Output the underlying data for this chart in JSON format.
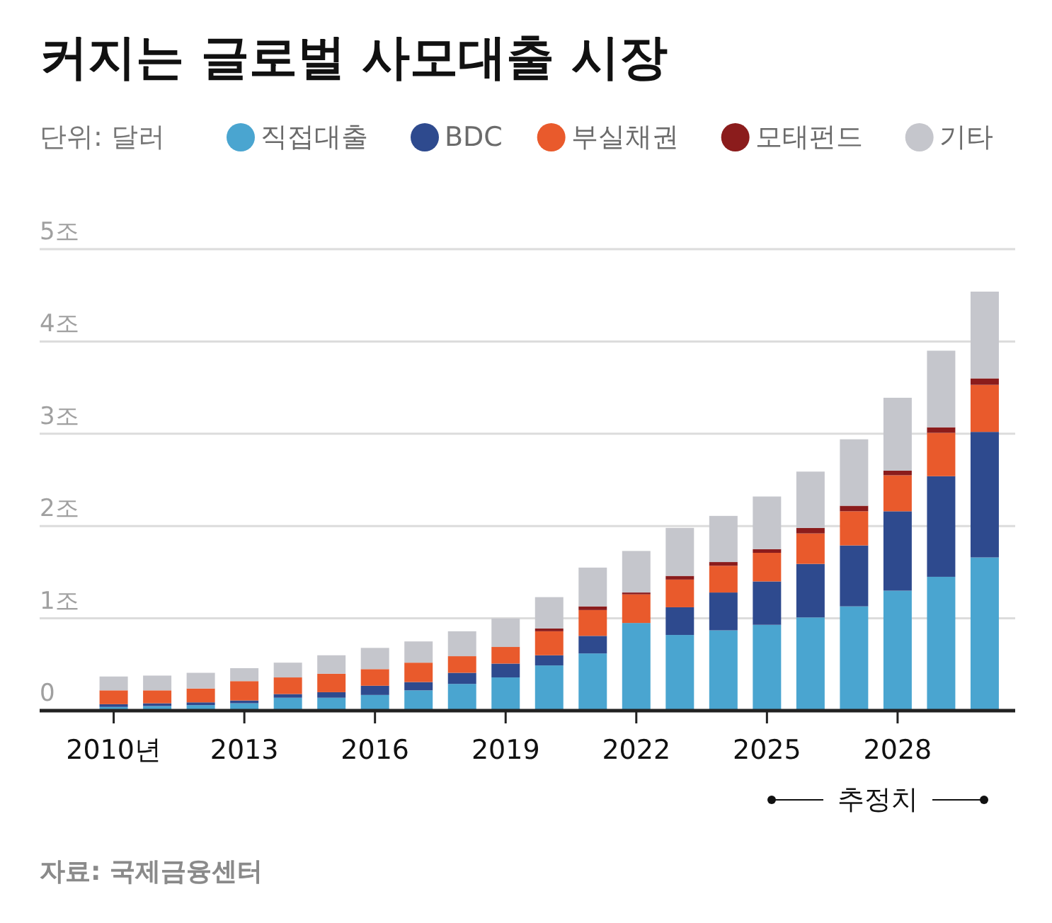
{
  "chart_data": {
    "type": "bar",
    "title": "커지는 글로벌 사모대출 시장",
    "ylabel": "단위: 달러",
    "stacked": true,
    "grid": "y",
    "legend": "top",
    "x": [
      2010,
      2011,
      2012,
      2013,
      2014,
      2015,
      2016,
      2017,
      2018,
      2019,
      2020,
      2021,
      2022,
      2023,
      2024,
      2025,
      2026,
      2027,
      2028,
      2029,
      2030
    ],
    "xlim": [
      2008.3,
      2030.7
    ],
    "xticks": [
      {
        "value": 2010,
        "label": "2010년"
      },
      2013,
      2016,
      2019,
      2022,
      2025,
      2028
    ],
    "ylim": [
      0,
      5
    ],
    "yticks": [
      0,
      {
        "value": 1,
        "label": "1조"
      },
      {
        "value": 2,
        "label": "2조"
      },
      {
        "value": 3,
        "label": "3조"
      },
      {
        "value": 4,
        "label": "4조"
      },
      {
        "value": 5,
        "label": "5조"
      }
    ],
    "series": [
      {
        "name": "직접대출",
        "color": "#4aa5d0",
        "values": [
          0.04,
          0.05,
          0.06,
          0.08,
          0.14,
          0.14,
          0.17,
          0.22,
          0.29,
          0.36,
          0.49,
          0.62,
          0.95,
          0.82,
          0.87,
          0.93,
          1.01,
          1.13,
          1.3,
          1.45,
          1.66
        ]
      },
      {
        "name": "BDC",
        "color": "#2e4a8e",
        "values": [
          0.03,
          0.03,
          0.03,
          0.03,
          0.04,
          0.06,
          0.1,
          0.09,
          0.12,
          0.15,
          0.11,
          0.19,
          0,
          0.3,
          0.41,
          0.47,
          0.58,
          0.66,
          0.86,
          1.09,
          1.36
        ]
      },
      {
        "name": "부실채권",
        "color": "#e95a2c",
        "values": [
          0.15,
          0.14,
          0.15,
          0.21,
          0.18,
          0.2,
          0.18,
          0.21,
          0.18,
          0.18,
          0.26,
          0.28,
          0.31,
          0.3,
          0.29,
          0.31,
          0.33,
          0.37,
          0.39,
          0.47,
          0.51
        ]
      },
      {
        "name": "모태펀드",
        "color": "#8b1c1c",
        "values": [
          0,
          0,
          0,
          0,
          0,
          0,
          0,
          0,
          0,
          0,
          0.03,
          0.04,
          0.02,
          0.04,
          0.04,
          0.04,
          0.06,
          0.06,
          0.05,
          0.06,
          0.07
        ]
      },
      {
        "name": "기타",
        "color": "#c5c6cc",
        "values": [
          0.15,
          0.16,
          0.17,
          0.14,
          0.16,
          0.2,
          0.23,
          0.23,
          0.27,
          0.31,
          0.34,
          0.42,
          0.45,
          0.52,
          0.5,
          0.57,
          0.61,
          0.72,
          0.79,
          0.83,
          0.94
        ]
      }
    ],
    "annotations": [
      "추정치",
      "자료: 국제금융센터"
    ]
  }
}
